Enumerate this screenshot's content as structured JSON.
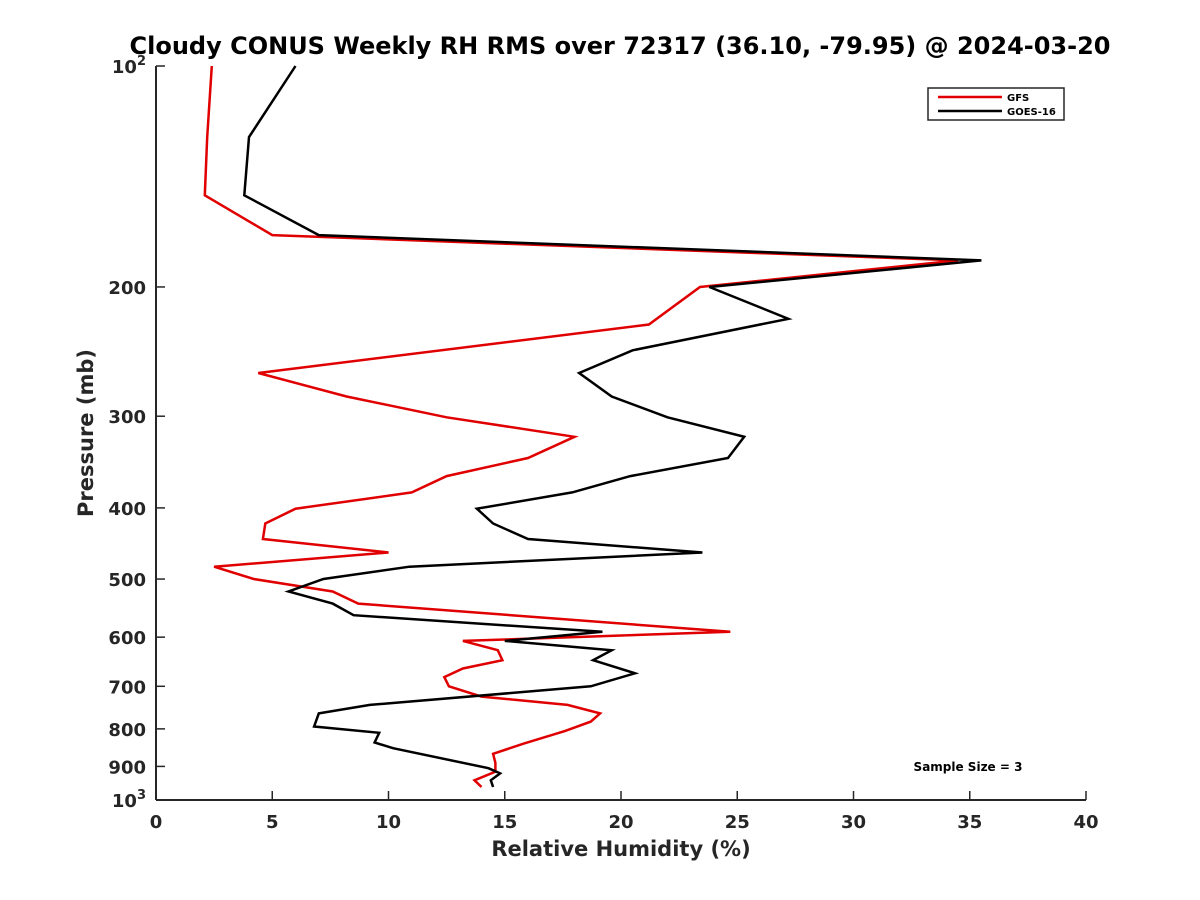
{
  "chart_data": {
    "type": "line",
    "title": "Cloudy CONUS Weekly RH RMS over 72317 (36.10, -79.95) @ 2024-03-20",
    "xlabel": "Relative Humidity (%)",
    "ylabel": "Pressure (mb)",
    "xlim": [
      0,
      40
    ],
    "ylim": [
      100,
      1000
    ],
    "y_scale": "log",
    "y_reversed": true,
    "grid": false,
    "legend_placement": "top-right",
    "x_ticks": [
      0,
      5,
      10,
      15,
      20,
      25,
      30,
      35,
      40
    ],
    "y_ticks": [
      {
        "value": 100,
        "base": "10",
        "exp": "2"
      },
      {
        "value": 200,
        "label": "200"
      },
      {
        "value": 300,
        "label": "300"
      },
      {
        "value": 400,
        "label": "400"
      },
      {
        "value": 500,
        "label": "500"
      },
      {
        "value": 600,
        "label": "600"
      },
      {
        "value": 700,
        "label": "700"
      },
      {
        "value": 800,
        "label": "800"
      },
      {
        "value": 900,
        "label": "900"
      },
      {
        "value": 1000,
        "base": "10",
        "exp": "3"
      }
    ],
    "series": [
      {
        "name": "GFS",
        "color": "#e00000",
        "points": [
          {
            "x": 2.4,
            "y": 100
          },
          {
            "x": 2.2,
            "y": 125
          },
          {
            "x": 2.1,
            "y": 150
          },
          {
            "x": 5.0,
            "y": 170
          },
          {
            "x": 34.5,
            "y": 184
          },
          {
            "x": 23.4,
            "y": 200
          },
          {
            "x": 21.2,
            "y": 225
          },
          {
            "x": 4.4,
            "y": 262
          },
          {
            "x": 8.2,
            "y": 282
          },
          {
            "x": 12.5,
            "y": 301
          },
          {
            "x": 18.0,
            "y": 320
          },
          {
            "x": 16.0,
            "y": 342
          },
          {
            "x": 12.5,
            "y": 362
          },
          {
            "x": 11.0,
            "y": 381
          },
          {
            "x": 6.0,
            "y": 401
          },
          {
            "x": 4.7,
            "y": 420
          },
          {
            "x": 4.6,
            "y": 441
          },
          {
            "x": 10.0,
            "y": 460
          },
          {
            "x": 2.5,
            "y": 481
          },
          {
            "x": 4.2,
            "y": 500
          },
          {
            "x": 7.6,
            "y": 520
          },
          {
            "x": 8.7,
            "y": 540
          },
          {
            "x": 24.7,
            "y": 590
          },
          {
            "x": 13.2,
            "y": 607
          },
          {
            "x": 14.7,
            "y": 625
          },
          {
            "x": 14.9,
            "y": 645
          },
          {
            "x": 13.2,
            "y": 662
          },
          {
            "x": 12.4,
            "y": 680
          },
          {
            "x": 12.6,
            "y": 700
          },
          {
            "x": 14.0,
            "y": 723
          },
          {
            "x": 17.7,
            "y": 742
          },
          {
            "x": 19.1,
            "y": 762
          },
          {
            "x": 18.7,
            "y": 782
          },
          {
            "x": 17.6,
            "y": 805
          },
          {
            "x": 15.8,
            "y": 838
          },
          {
            "x": 14.5,
            "y": 865
          },
          {
            "x": 14.6,
            "y": 890
          },
          {
            "x": 14.6,
            "y": 915
          },
          {
            "x": 13.7,
            "y": 940
          },
          {
            "x": 14.0,
            "y": 960
          }
        ]
      },
      {
        "name": "GOES-16",
        "color": "#000000",
        "points": [
          {
            "x": 6.0,
            "y": 100
          },
          {
            "x": 4.0,
            "y": 125
          },
          {
            "x": 3.8,
            "y": 150
          },
          {
            "x": 7.0,
            "y": 170
          },
          {
            "x": 35.5,
            "y": 184
          },
          {
            "x": 23.8,
            "y": 200
          },
          {
            "x": 27.2,
            "y": 221
          },
          {
            "x": 20.5,
            "y": 244
          },
          {
            "x": 18.2,
            "y": 262
          },
          {
            "x": 19.6,
            "y": 282
          },
          {
            "x": 22.0,
            "y": 301
          },
          {
            "x": 25.3,
            "y": 320
          },
          {
            "x": 24.6,
            "y": 342
          },
          {
            "x": 20.4,
            "y": 362
          },
          {
            "x": 17.9,
            "y": 381
          },
          {
            "x": 13.8,
            "y": 401
          },
          {
            "x": 14.5,
            "y": 420
          },
          {
            "x": 16.0,
            "y": 441
          },
          {
            "x": 23.5,
            "y": 460
          },
          {
            "x": 10.9,
            "y": 481
          },
          {
            "x": 7.2,
            "y": 500
          },
          {
            "x": 5.7,
            "y": 520
          },
          {
            "x": 7.6,
            "y": 540
          },
          {
            "x": 8.5,
            "y": 560
          },
          {
            "x": 19.2,
            "y": 590
          },
          {
            "x": 15.0,
            "y": 607
          },
          {
            "x": 19.6,
            "y": 625
          },
          {
            "x": 18.8,
            "y": 645
          },
          {
            "x": 20.6,
            "y": 672
          },
          {
            "x": 18.7,
            "y": 700
          },
          {
            "x": 9.2,
            "y": 742
          },
          {
            "x": 7.0,
            "y": 762
          },
          {
            "x": 6.8,
            "y": 794
          },
          {
            "x": 9.6,
            "y": 810
          },
          {
            "x": 9.4,
            "y": 835
          },
          {
            "x": 10.2,
            "y": 850
          },
          {
            "x": 14.3,
            "y": 905
          },
          {
            "x": 14.8,
            "y": 920
          },
          {
            "x": 14.4,
            "y": 940
          },
          {
            "x": 14.5,
            "y": 960
          }
        ]
      }
    ],
    "annotation": "Sample Size = 3"
  }
}
